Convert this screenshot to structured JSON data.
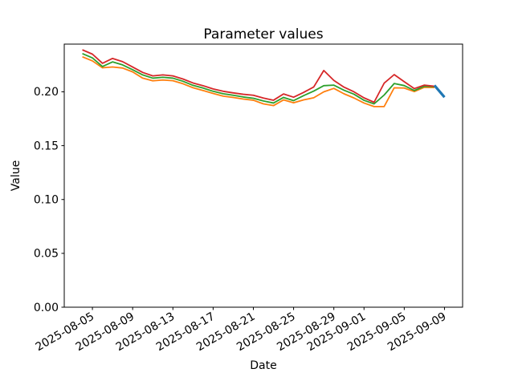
{
  "chart_data": {
    "type": "line",
    "title": "Parameter values",
    "xlabel": "Date",
    "ylabel": "Value",
    "grid": false,
    "legend": "none",
    "ylim": [
      0,
      0.2443
    ],
    "x_margin_frac": 0.05,
    "x": [
      "2025-08-04",
      "2025-08-05",
      "2025-08-06",
      "2025-08-07",
      "2025-08-08",
      "2025-08-09",
      "2025-08-10",
      "2025-08-11",
      "2025-08-12",
      "2025-08-13",
      "2025-08-14",
      "2025-08-15",
      "2025-08-16",
      "2025-08-17",
      "2025-08-18",
      "2025-08-19",
      "2025-08-20",
      "2025-08-21",
      "2025-08-22",
      "2025-08-23",
      "2025-08-24",
      "2025-08-25",
      "2025-08-26",
      "2025-08-27",
      "2025-08-28",
      "2025-08-29",
      "2025-08-30",
      "2025-08-31",
      "2025-09-01",
      "2025-09-02",
      "2025-09-03",
      "2025-09-04",
      "2025-09-05",
      "2025-09-06",
      "2025-09-07",
      "2025-09-08",
      "2025-09-09"
    ],
    "xtick_labels": [
      "2025-08-05",
      "2025-08-09",
      "2025-08-13",
      "2025-08-17",
      "2025-08-21",
      "2025-08-25",
      "2025-08-29",
      "2025-09-01",
      "2025-09-05",
      "2025-09-09"
    ],
    "yticks": [
      {
        "value": 0.0,
        "label": "0.00"
      },
      {
        "value": 0.05,
        "label": "0.05"
      },
      {
        "value": 0.1,
        "label": "0.10"
      },
      {
        "value": 0.15,
        "label": "0.15"
      },
      {
        "value": 0.2,
        "label": "0.20"
      }
    ],
    "series": [
      {
        "name": "orange-line",
        "color": "#ff7f0e",
        "linewidth": 1.8,
        "values": [
          0.2325,
          0.2287,
          0.2223,
          0.2231,
          0.2221,
          0.2185,
          0.2127,
          0.2102,
          0.211,
          0.2103,
          0.2075,
          0.2038,
          0.2012,
          0.1985,
          0.196,
          0.1948,
          0.1933,
          0.1922,
          0.1888,
          0.1872,
          0.1925,
          0.1898,
          0.1925,
          0.1945,
          0.2,
          0.2032,
          0.1982,
          0.1943,
          0.1896,
          0.1863,
          0.1863,
          0.2037,
          0.2035,
          0.2002,
          0.2042,
          0.204,
          null
        ]
      },
      {
        "name": "green-line",
        "color": "#2ca02c",
        "linewidth": 1.8,
        "values": [
          0.2355,
          0.2315,
          0.2235,
          0.2278,
          0.225,
          0.2205,
          0.2157,
          0.2127,
          0.2135,
          0.2127,
          0.2098,
          0.206,
          0.2035,
          0.2005,
          0.1982,
          0.1968,
          0.1952,
          0.194,
          0.1915,
          0.1896,
          0.1948,
          0.1918,
          0.1965,
          0.2007,
          0.2057,
          0.2062,
          0.2015,
          0.1978,
          0.1921,
          0.1888,
          0.197,
          0.2077,
          0.2058,
          0.2012,
          0.2052,
          0.2048,
          null
        ]
      },
      {
        "name": "red-line",
        "color": "#d62728",
        "linewidth": 1.8,
        "values": [
          0.239,
          0.235,
          0.2265,
          0.231,
          0.228,
          0.223,
          0.218,
          0.2148,
          0.2157,
          0.2148,
          0.2119,
          0.2082,
          0.2057,
          0.2027,
          0.2005,
          0.199,
          0.1977,
          0.1968,
          0.1942,
          0.1922,
          0.198,
          0.195,
          0.1995,
          0.2045,
          0.2198,
          0.2106,
          0.2044,
          0.2,
          0.1944,
          0.1903,
          0.208,
          0.216,
          0.2094,
          0.203,
          0.2062,
          0.2052,
          null
        ]
      },
      {
        "name": "blue-line",
        "color": "#1f77b4",
        "linewidth": 3.2,
        "values": [
          null,
          null,
          null,
          null,
          null,
          null,
          null,
          null,
          null,
          null,
          null,
          null,
          null,
          null,
          null,
          null,
          null,
          null,
          null,
          null,
          null,
          null,
          null,
          null,
          null,
          null,
          null,
          null,
          null,
          null,
          null,
          null,
          null,
          null,
          null,
          0.206,
          0.195
        ]
      }
    ]
  }
}
